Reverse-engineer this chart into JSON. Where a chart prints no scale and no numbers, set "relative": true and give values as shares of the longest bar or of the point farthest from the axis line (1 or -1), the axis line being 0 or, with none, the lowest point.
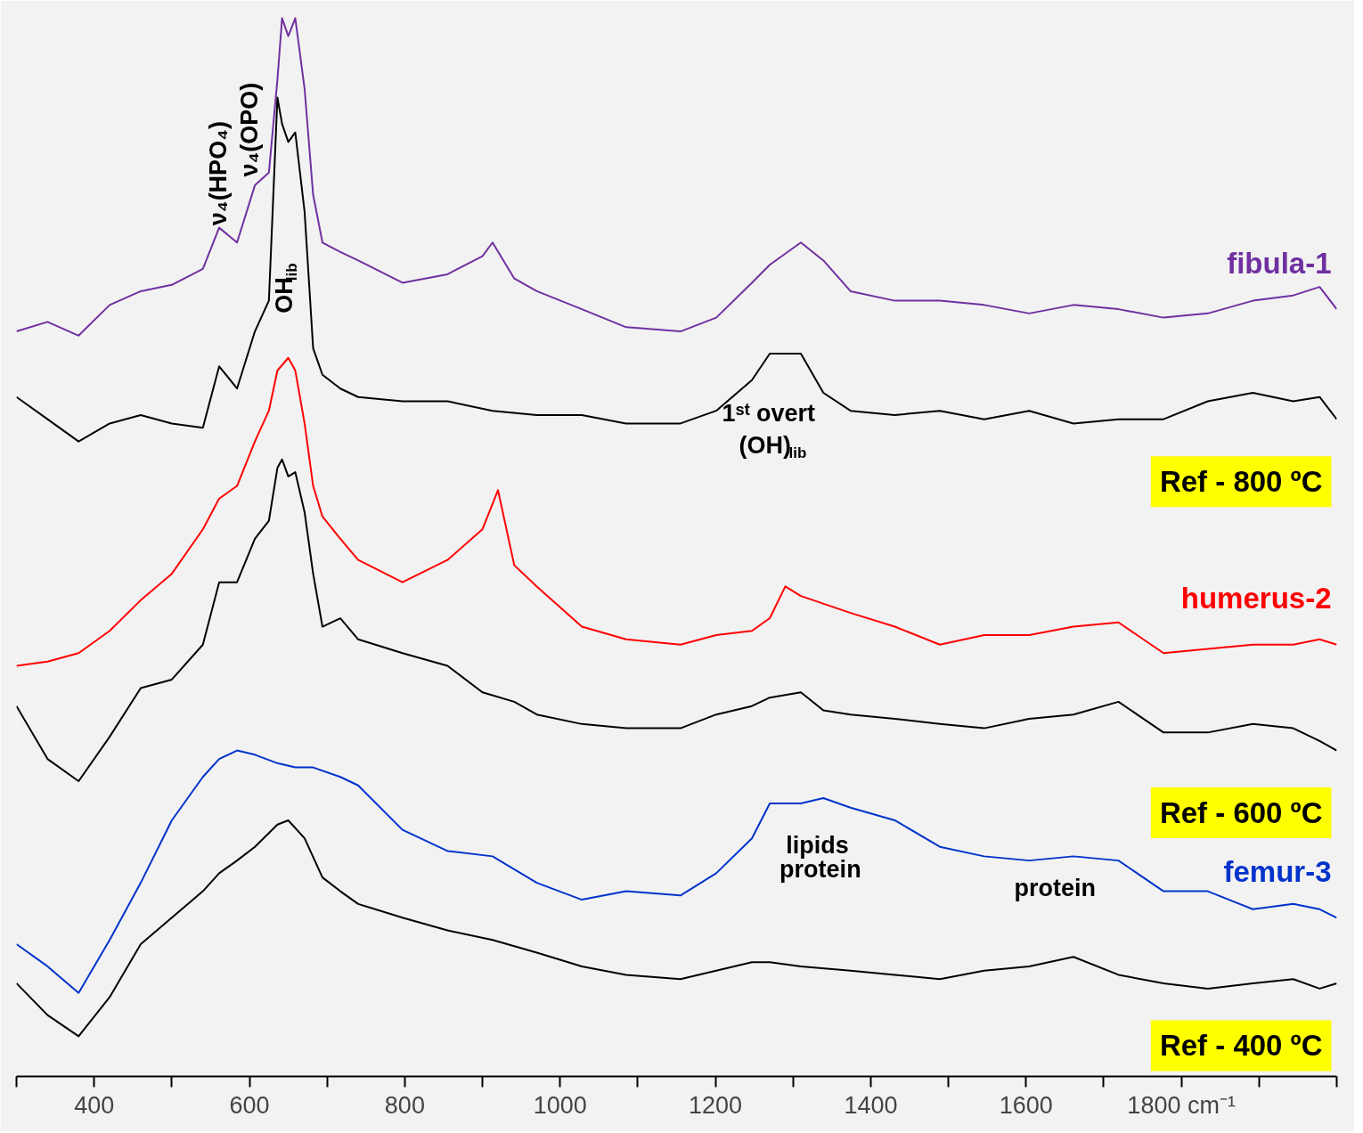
{
  "chart_data": {
    "type": "line",
    "relative": true,
    "grid": false,
    "tick_labels": "x",
    "marker": "none",
    "line_style": "solid",
    "xlim": [
      300,
      2000
    ],
    "xticks": [
      {
        "value": 300,
        "label": null
      },
      400,
      {
        "value": 500,
        "label": null
      },
      600,
      {
        "value": 700,
        "label": null
      },
      800,
      {
        "value": 900,
        "label": null
      },
      1000,
      {
        "value": 1100,
        "label": null
      },
      1200,
      {
        "value": 1300,
        "label": null
      },
      1400,
      {
        "value": 1500,
        "label": null
      },
      1600,
      {
        "value": 1700,
        "label": null
      },
      {
        "value": 1800,
        "label": "1800 cm⁻¹"
      },
      {
        "value": 1900,
        "label": null
      },
      {
        "value": 2000,
        "label": null
      }
    ],
    "series": [
      {
        "name": "fibula-1",
        "color": "#7030a0",
        "x": [
          300,
          340,
          380,
          420,
          460,
          500,
          540,
          561,
          584,
          607,
          625,
          636,
          642,
          650,
          659,
          671,
          682,
          694,
          717,
          740,
          797,
          855,
          900,
          913,
          941,
          970,
          1028,
          1085,
          1155,
          1201,
          1247,
          1270,
          1310,
          1339,
          1374,
          1431,
          1489,
          1546,
          1604,
          1661,
          1719,
          1777,
          1834,
          1892,
          1944,
          1978,
          2000
        ],
        "values": [
          0.704,
          0.713,
          0.7,
          0.729,
          0.742,
          0.748,
          0.763,
          0.802,
          0.788,
          0.842,
          0.854,
          0.942,
          1.0,
          0.983,
          1.0,
          0.933,
          0.833,
          0.788,
          0.779,
          0.771,
          0.75,
          0.758,
          0.775,
          0.788,
          0.754,
          0.742,
          0.725,
          0.708,
          0.704,
          0.717,
          0.75,
          0.767,
          0.788,
          0.771,
          0.742,
          0.733,
          0.733,
          0.729,
          0.721,
          0.729,
          0.725,
          0.717,
          0.721,
          0.733,
          0.738,
          0.746,
          0.725
        ]
      },
      {
        "name": "Ref - 800 ºC",
        "color": "#000000",
        "x": [
          300,
          340,
          380,
          420,
          460,
          500,
          540,
          561,
          584,
          607,
          625,
          636,
          642,
          650,
          659,
          671,
          682,
          694,
          717,
          740,
          797,
          855,
          913,
          970,
          1028,
          1085,
          1155,
          1201,
          1247,
          1270,
          1310,
          1339,
          1374,
          1431,
          1489,
          1546,
          1604,
          1661,
          1719,
          1777,
          1834,
          1892,
          1944,
          1978,
          2000
        ],
        "values": [
          0.642,
          0.621,
          0.6,
          0.617,
          0.625,
          0.617,
          0.613,
          0.671,
          0.65,
          0.704,
          0.733,
          0.925,
          0.9,
          0.883,
          0.892,
          0.817,
          0.688,
          0.663,
          0.65,
          0.642,
          0.638,
          0.638,
          0.629,
          0.625,
          0.625,
          0.617,
          0.617,
          0.629,
          0.658,
          0.683,
          0.683,
          0.646,
          0.629,
          0.625,
          0.629,
          0.621,
          0.629,
          0.617,
          0.621,
          0.621,
          0.638,
          0.646,
          0.638,
          0.642,
          0.621
        ]
      },
      {
        "name": "humerus-2",
        "color": "#ff0000",
        "x": [
          300,
          340,
          380,
          420,
          460,
          500,
          540,
          561,
          584,
          607,
          625,
          636,
          650,
          659,
          671,
          682,
          694,
          717,
          740,
          797,
          855,
          900,
          920,
          941,
          970,
          1028,
          1085,
          1155,
          1201,
          1247,
          1270,
          1290,
          1310,
          1374,
          1431,
          1489,
          1546,
          1604,
          1661,
          1719,
          1777,
          1834,
          1892,
          1944,
          1978,
          2000
        ],
        "values": [
          0.388,
          0.392,
          0.4,
          0.421,
          0.45,
          0.475,
          0.517,
          0.546,
          0.558,
          0.6,
          0.629,
          0.667,
          0.679,
          0.667,
          0.617,
          0.558,
          0.529,
          0.508,
          0.488,
          0.467,
          0.488,
          0.517,
          0.554,
          0.483,
          0.463,
          0.425,
          0.413,
          0.408,
          0.417,
          0.421,
          0.433,
          0.463,
          0.454,
          0.438,
          0.425,
          0.408,
          0.417,
          0.417,
          0.425,
          0.429,
          0.4,
          0.404,
          0.408,
          0.408,
          0.413,
          0.408
        ]
      },
      {
        "name": "Ref - 600 ºC",
        "color": "#000000",
        "x": [
          300,
          340,
          380,
          420,
          460,
          500,
          540,
          561,
          584,
          607,
          625,
          636,
          642,
          650,
          659,
          671,
          682,
          694,
          717,
          740,
          797,
          855,
          900,
          941,
          970,
          1028,
          1085,
          1155,
          1201,
          1247,
          1270,
          1310,
          1339,
          1374,
          1431,
          1489,
          1546,
          1604,
          1661,
          1719,
          1777,
          1834,
          1892,
          1944,
          1978,
          2000
        ],
        "values": [
          0.35,
          0.3,
          0.279,
          0.321,
          0.367,
          0.375,
          0.408,
          0.467,
          0.467,
          0.508,
          0.525,
          0.575,
          0.583,
          0.567,
          0.571,
          0.533,
          0.475,
          0.425,
          0.433,
          0.413,
          0.4,
          0.388,
          0.363,
          0.354,
          0.342,
          0.333,
          0.329,
          0.329,
          0.342,
          0.35,
          0.358,
          0.363,
          0.346,
          0.342,
          0.338,
          0.333,
          0.329,
          0.338,
          0.342,
          0.354,
          0.325,
          0.325,
          0.333,
          0.329,
          0.317,
          0.308
        ]
      },
      {
        "name": "femur-3",
        "color": "#0033cc",
        "x": [
          300,
          340,
          380,
          420,
          460,
          500,
          540,
          561,
          584,
          607,
          636,
          659,
          682,
          717,
          740,
          797,
          855,
          913,
          970,
          1028,
          1085,
          1155,
          1201,
          1247,
          1270,
          1310,
          1339,
          1374,
          1431,
          1489,
          1546,
          1604,
          1661,
          1719,
          1777,
          1834,
          1892,
          1944,
          1978,
          2000
        ],
        "values": [
          0.125,
          0.104,
          0.079,
          0.129,
          0.183,
          0.242,
          0.283,
          0.3,
          0.308,
          0.304,
          0.296,
          0.292,
          0.292,
          0.283,
          0.275,
          0.233,
          0.213,
          0.208,
          0.183,
          0.167,
          0.175,
          0.171,
          0.192,
          0.225,
          0.258,
          0.258,
          0.263,
          0.254,
          0.242,
          0.217,
          0.208,
          0.204,
          0.208,
          0.204,
          0.175,
          0.175,
          0.158,
          0.163,
          0.158,
          0.15
        ]
      },
      {
        "name": "Ref - 400 ºC",
        "color": "#000000",
        "x": [
          300,
          340,
          380,
          420,
          460,
          500,
          540,
          561,
          584,
          607,
          636,
          650,
          671,
          694,
          717,
          740,
          797,
          855,
          913,
          970,
          1028,
          1085,
          1155,
          1201,
          1247,
          1270,
          1310,
          1374,
          1431,
          1489,
          1546,
          1604,
          1661,
          1719,
          1777,
          1834,
          1892,
          1944,
          1978,
          2000
        ],
        "values": [
          0.088,
          0.058,
          0.038,
          0.075,
          0.125,
          0.15,
          0.175,
          0.192,
          0.204,
          0.217,
          0.238,
          0.242,
          0.225,
          0.188,
          0.175,
          0.163,
          0.15,
          0.138,
          0.129,
          0.117,
          0.104,
          0.096,
          0.092,
          0.1,
          0.108,
          0.108,
          0.104,
          0.1,
          0.096,
          0.092,
          0.1,
          0.104,
          0.113,
          0.096,
          0.088,
          0.083,
          0.088,
          0.092,
          0.083,
          0.088
        ]
      }
    ],
    "annotations": [
      "ν₄(HPO₄)",
      "ν₄(OPO)",
      "OH$_{lib}$",
      "1ˢᵗ overt",
      "(OH)$_{lib}$",
      "lipids",
      "protein",
      "protein"
    ]
  }
}
